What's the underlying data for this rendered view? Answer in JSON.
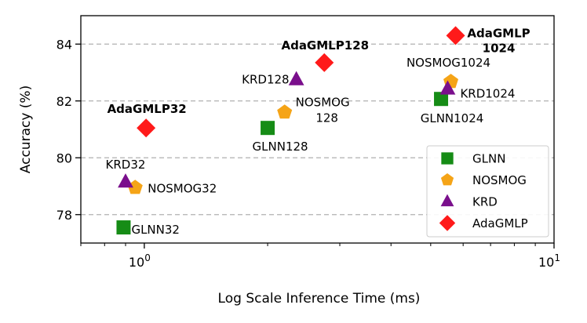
{
  "chart_data": {
    "type": "scatter",
    "title": "",
    "xlabel": "Log Scale Inference Time (ms)",
    "ylabel": "Accuracy (%)",
    "xscale": "log",
    "xlim": [
      0.7,
      10
    ],
    "ylim": [
      77.0,
      85.0
    ],
    "xticks": [
      {
        "base": "10",
        "exp": "0",
        "value": 1
      },
      {
        "base": "10",
        "exp": "1",
        "value": 10
      }
    ],
    "yticks": [
      78,
      80,
      82,
      84
    ],
    "grid": "y-dashed",
    "legend_position": "lower-right",
    "series": [
      {
        "name": "GLNN",
        "marker": "square",
        "color": "#168c16",
        "points": [
          {
            "label": "GLNN32",
            "x": 0.89,
            "y": 77.55
          },
          {
            "label": "GLNN128",
            "x": 2.0,
            "y": 81.05
          },
          {
            "label": "GLNN1024",
            "x": 5.3,
            "y": 82.07
          }
        ]
      },
      {
        "name": "NOSMOG",
        "marker": "pentagon",
        "color": "#f5a417",
        "points": [
          {
            "label": "NOSMOG32",
            "x": 0.95,
            "y": 78.95
          },
          {
            "label": "NOSMOG 128",
            "x": 2.2,
            "y": 81.6
          },
          {
            "label": "NOSMOG1024",
            "x": 5.6,
            "y": 82.68
          }
        ]
      },
      {
        "name": "KRD",
        "marker": "triangle",
        "color": "#7a0f8c",
        "points": [
          {
            "label": "KRD32",
            "x": 0.9,
            "y": 79.15
          },
          {
            "label": "KRD128",
            "x": 2.35,
            "y": 82.75
          },
          {
            "label": "KRD1024",
            "x": 5.5,
            "y": 82.42
          }
        ]
      },
      {
        "name": "AdaGMLP",
        "marker": "diamond",
        "color": "#ff1a1a",
        "points": [
          {
            "label": "AdaGMLP32",
            "x": 1.01,
            "y": 81.05
          },
          {
            "label": "AdaGMLP128",
            "x": 2.75,
            "y": 83.35
          },
          {
            "label": "AdaGMLP 1024",
            "x": 5.75,
            "y": 84.3
          }
        ]
      }
    ]
  }
}
